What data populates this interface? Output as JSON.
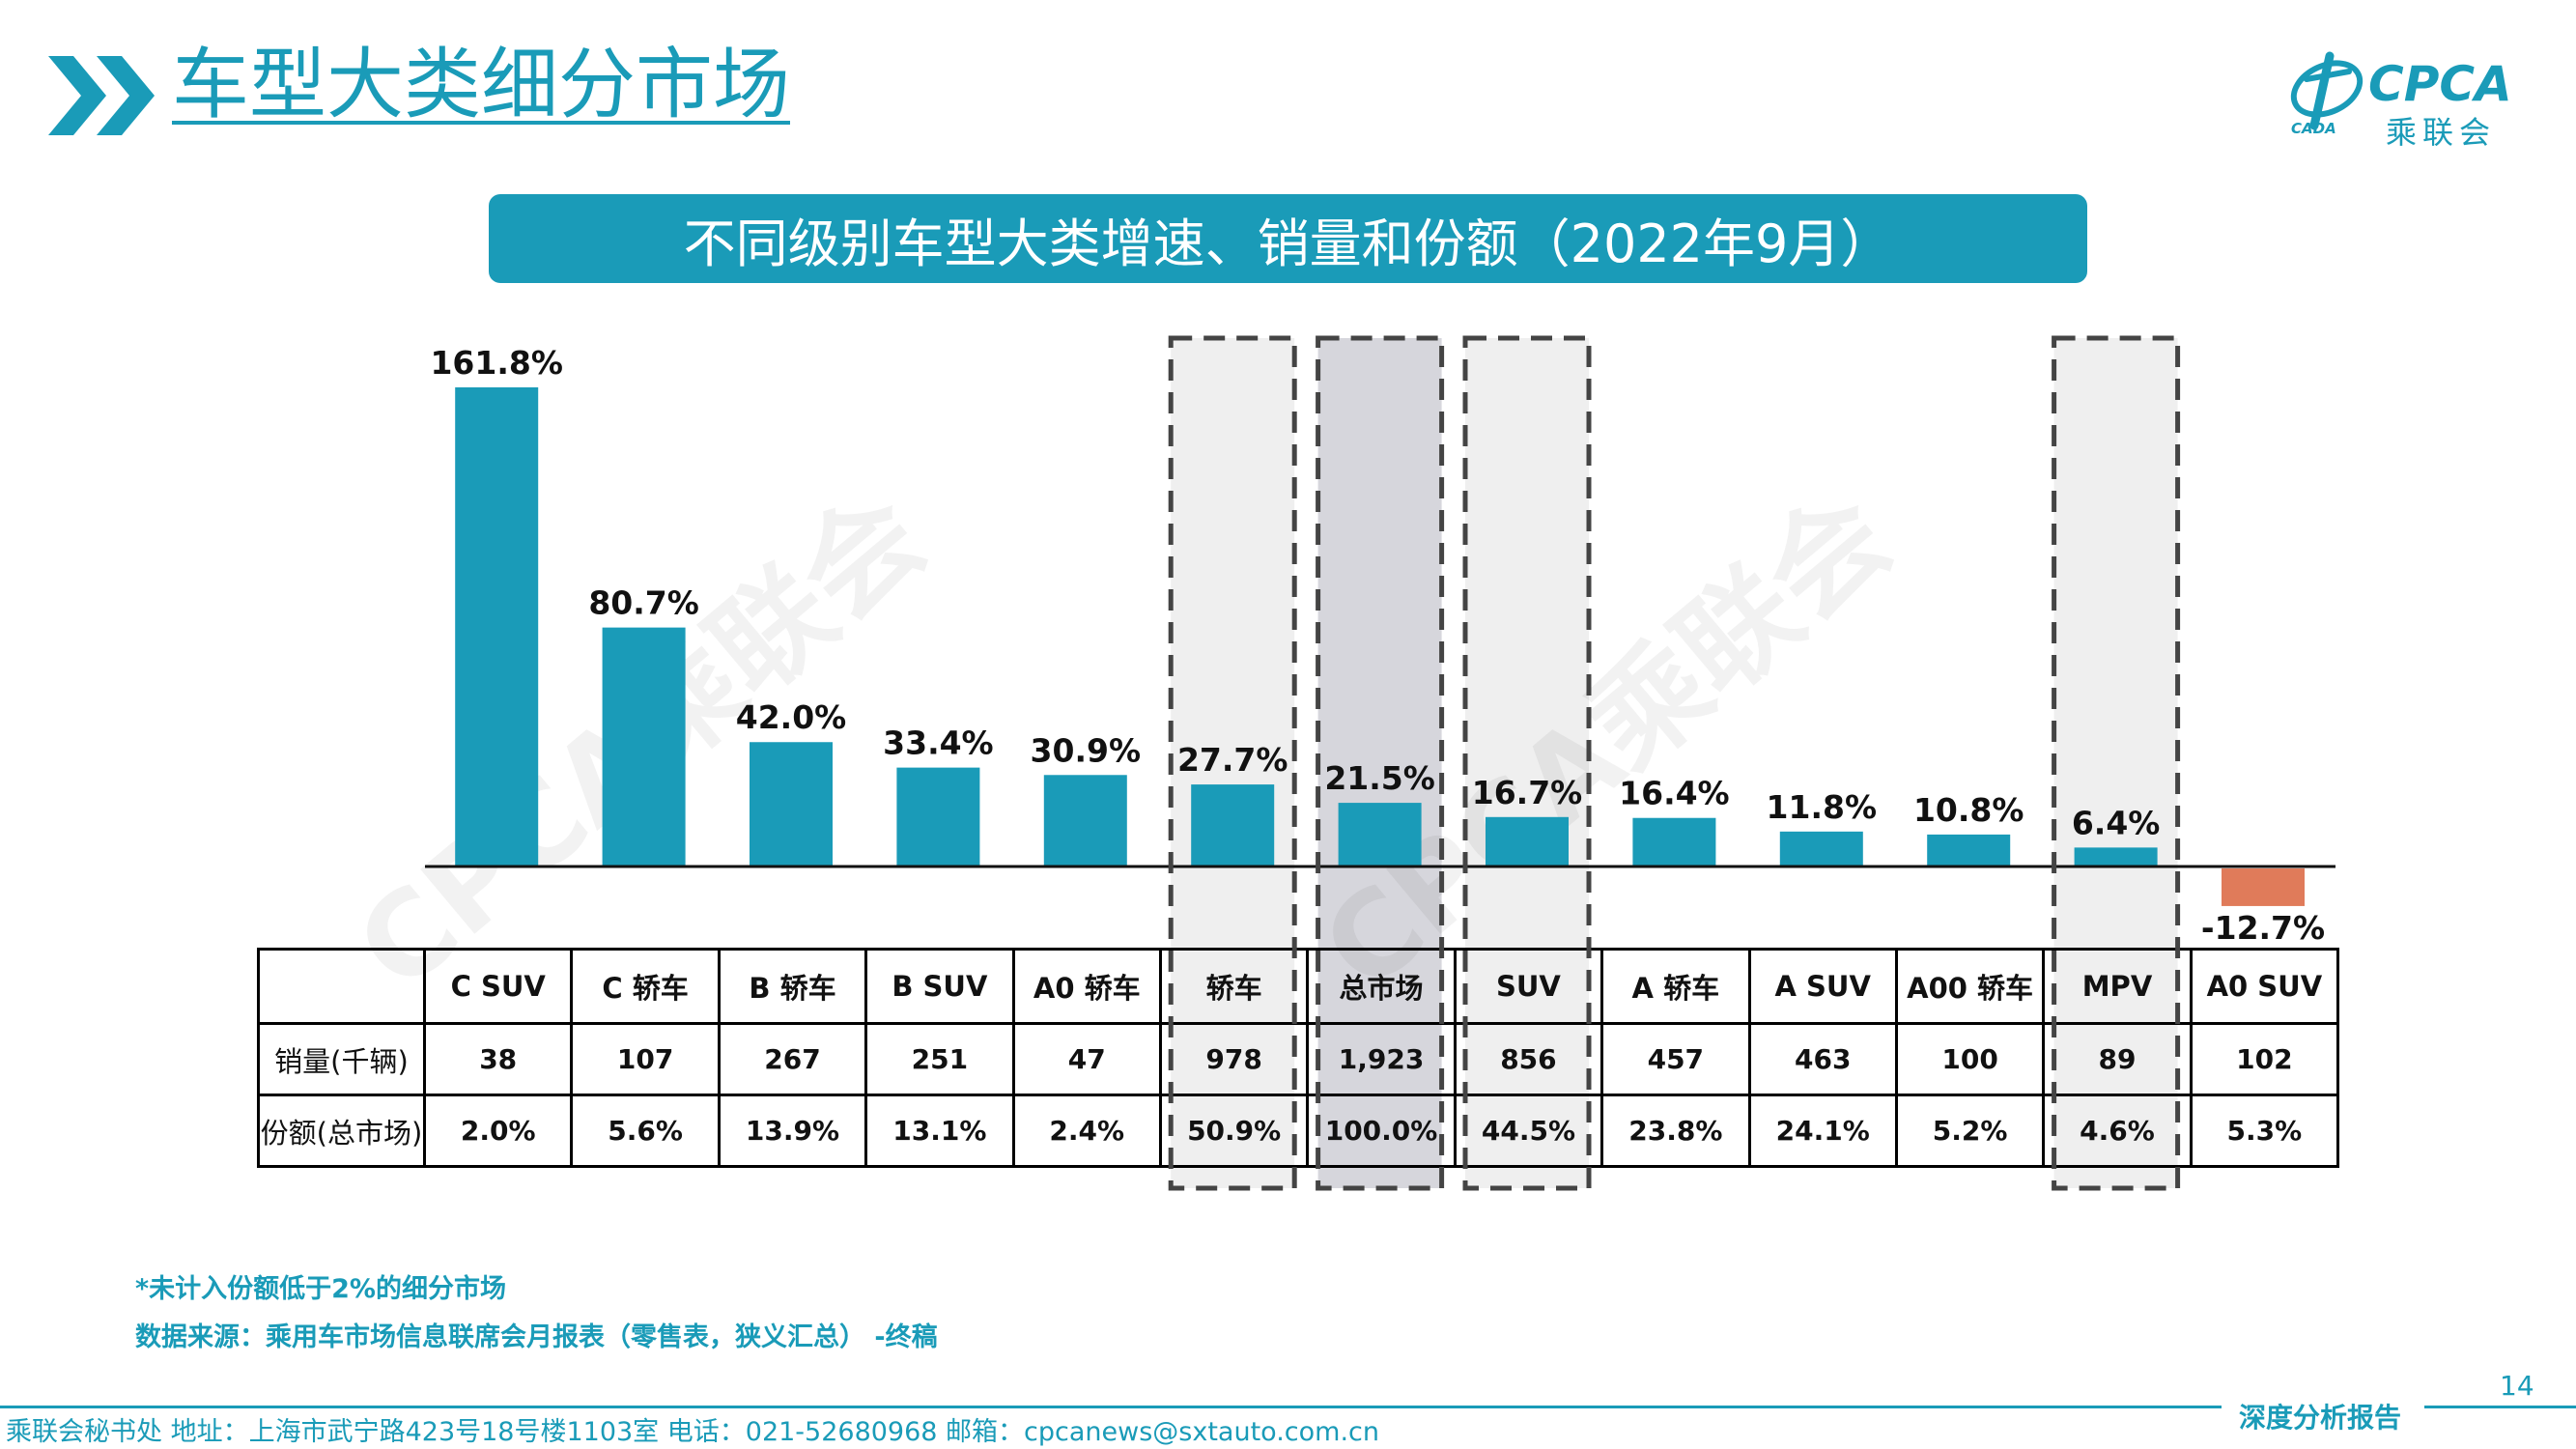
{
  "header": {
    "title": "车型大类细分市场",
    "banner": "不同级别车型大类增速、销量和份额（2022年9月）"
  },
  "logo": {
    "brand": "CPCA",
    "brand_cn": "乘联会",
    "small_text": "CADA",
    "icon": "cpca-logo-icon"
  },
  "watermark": "CPCA乘联会",
  "colors": {
    "accent": "#1a9bb8",
    "negative": "#e07b5a",
    "highlight_light": "#efefef",
    "highlight_dark": "#d6d6dc"
  },
  "chart_data": {
    "type": "bar",
    "categories": [
      "C SUV",
      "C 轿车",
      "B 轿车",
      "B SUV",
      "A0 轿车",
      "轿车",
      "总市场",
      "SUV",
      "A 轿车",
      "A SUV",
      "A00 轿车",
      "MPV",
      "A0 SUV"
    ],
    "values": [
      161.8,
      80.7,
      42.0,
      33.4,
      30.9,
      27.7,
      21.5,
      16.7,
      16.4,
      11.8,
      10.8,
      6.4,
      -12.7
    ],
    "value_labels": [
      "161.8%",
      "80.7%",
      "42.0%",
      "33.4%",
      "30.9%",
      "27.7%",
      "21.5%",
      "16.7%",
      "16.4%",
      "11.8%",
      "10.8%",
      "6.4%",
      "-12.7%"
    ],
    "highlighted_categories": [
      "轿车",
      "总市场",
      "SUV",
      "MPV"
    ],
    "unit": "%"
  },
  "table": {
    "row_labels": [
      "销量(千辆)",
      "份额(总市场)"
    ],
    "sales": [
      "38",
      "107",
      "267",
      "251",
      "47",
      "978",
      "1,923",
      "856",
      "457",
      "463",
      "100",
      "89",
      "102"
    ],
    "share": [
      "2.0%",
      "5.6%",
      "13.9%",
      "13.1%",
      "2.4%",
      "50.9%",
      "100.0%",
      "44.5%",
      "23.8%",
      "24.1%",
      "5.2%",
      "4.6%",
      "5.3%"
    ]
  },
  "footer": {
    "note": "*未计入份额低于2%的细分市场",
    "source": "数据来源：乘用车市场信息联席会月报表（零售表，狭义汇总） -终稿",
    "address": "乘联会秘书处   地址：上海市武宁路423号18号楼1103室  电话：021-52680968   邮箱：cpcanews@sxtauto.com.cn",
    "page_number": "14",
    "report_tag": "深度分析报告"
  }
}
